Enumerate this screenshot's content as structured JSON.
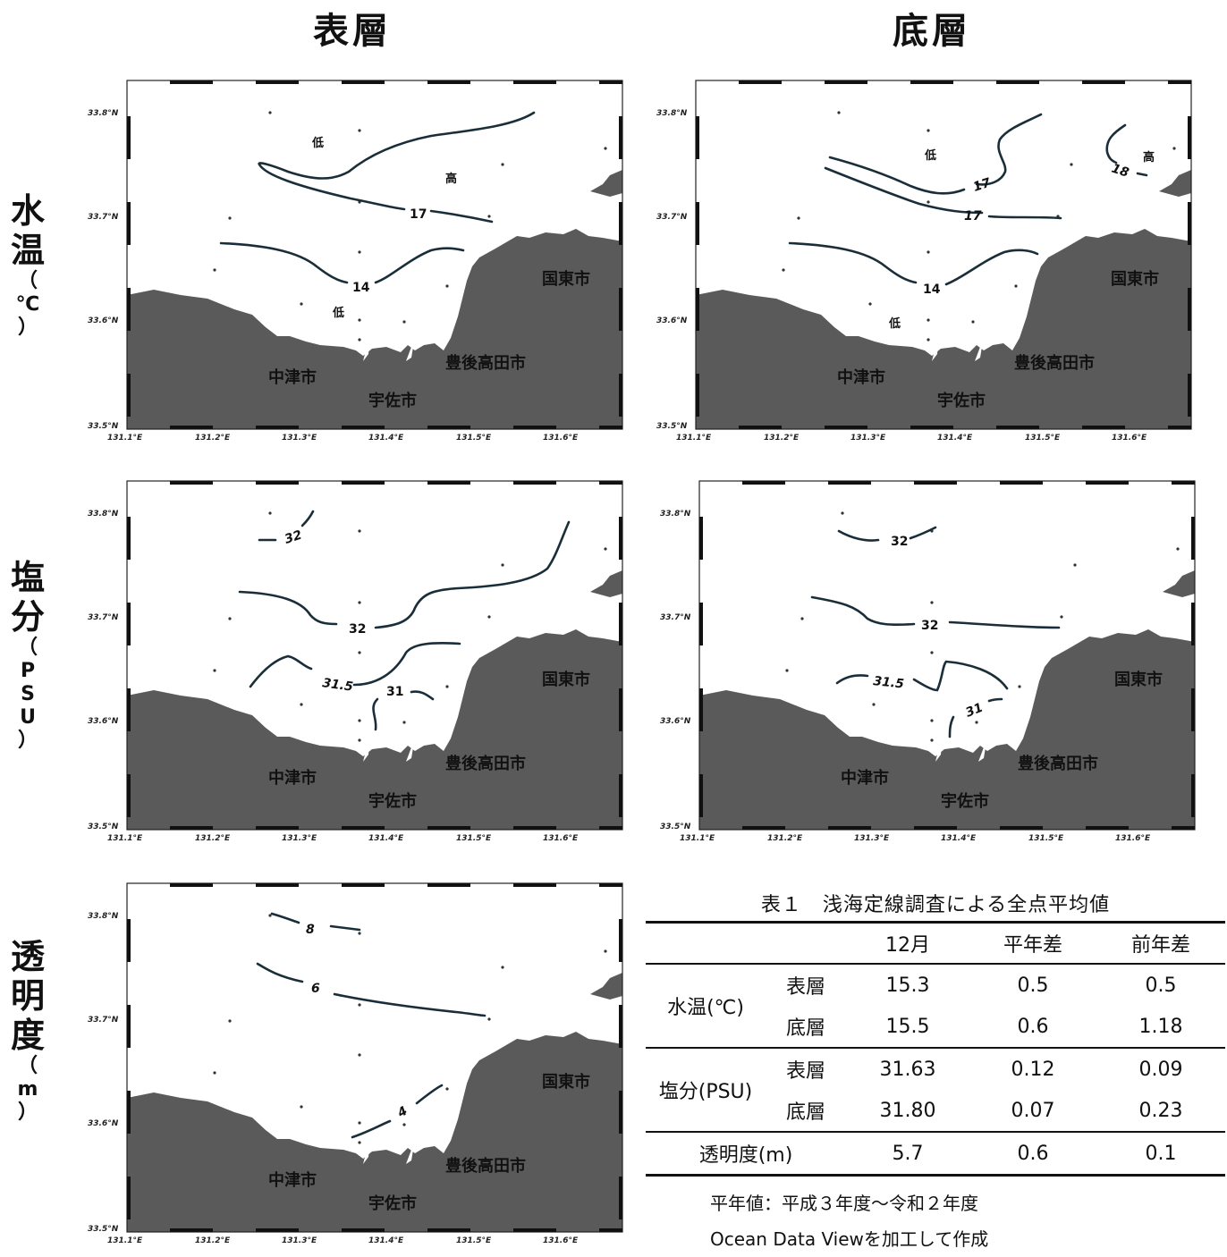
{
  "columns": {
    "surface": "表層",
    "bottom": "底層"
  },
  "rows": {
    "temperature": {
      "big": [
        "水",
        "温"
      ],
      "small": [
        "（",
        "℃",
        "）"
      ]
    },
    "salinity": {
      "big": [
        "塩",
        "分"
      ],
      "small": [
        "（",
        "P",
        "S",
        "U",
        "）"
      ]
    },
    "transparency": {
      "big": [
        "透",
        "明",
        "度"
      ],
      "small": [
        "（",
        "m",
        "）"
      ]
    }
  },
  "map": {
    "cities": {
      "kunisaki": "国東市",
      "bungotakada": "豊後高田市",
      "nakatsu": "中津市",
      "usa": "宇佐市"
    },
    "lat_ticks": [
      "33.8°N",
      "33.7°N",
      "33.6°N",
      "33.5°N"
    ],
    "lon_ticks": [
      "131.1°E",
      "131.2°E",
      "131.3°E",
      "131.4°E",
      "131.5°E",
      "131.6°E"
    ],
    "low": "低",
    "high": "高",
    "land_color": "#5a5a5a",
    "contour_color": "#1a2e3a"
  },
  "contours": {
    "temp_surface": [
      "17",
      "14"
    ],
    "temp_bottom": [
      "17",
      "17",
      "18",
      "14"
    ],
    "sal_surface": [
      "32",
      "32",
      "31.5",
      "31"
    ],
    "sal_bottom": [
      "32",
      "32",
      "31.5",
      "31"
    ],
    "transparency_surface": [
      "8",
      "6",
      "4"
    ]
  },
  "table": {
    "caption": "表１　浅海定線調査による全点平均値",
    "headers": [
      "",
      "",
      "12月",
      "平年差",
      "前年差"
    ],
    "rows": [
      {
        "group": "水温(℃)",
        "layer": "表層",
        "dec": "15.3",
        "normal_diff": "0.5",
        "prev_diff": "0.5"
      },
      {
        "group": "",
        "layer": "底層",
        "dec": "15.5",
        "normal_diff": "0.6",
        "prev_diff": "1.18"
      },
      {
        "group": "塩分(PSU)",
        "layer": "表層",
        "dec": "31.63",
        "normal_diff": "0.12",
        "prev_diff": "0.09"
      },
      {
        "group": "",
        "layer": "底層",
        "dec": "31.80",
        "normal_diff": "0.07",
        "prev_diff": "0.23"
      },
      {
        "group": "透明度(m)",
        "layer": "",
        "dec": "5.7",
        "normal_diff": "0.6",
        "prev_diff": "0.1"
      }
    ],
    "notes": [
      "平年値：平成３年度～令和２年度",
      "Ocean Data Viewを加工して作成"
    ]
  }
}
